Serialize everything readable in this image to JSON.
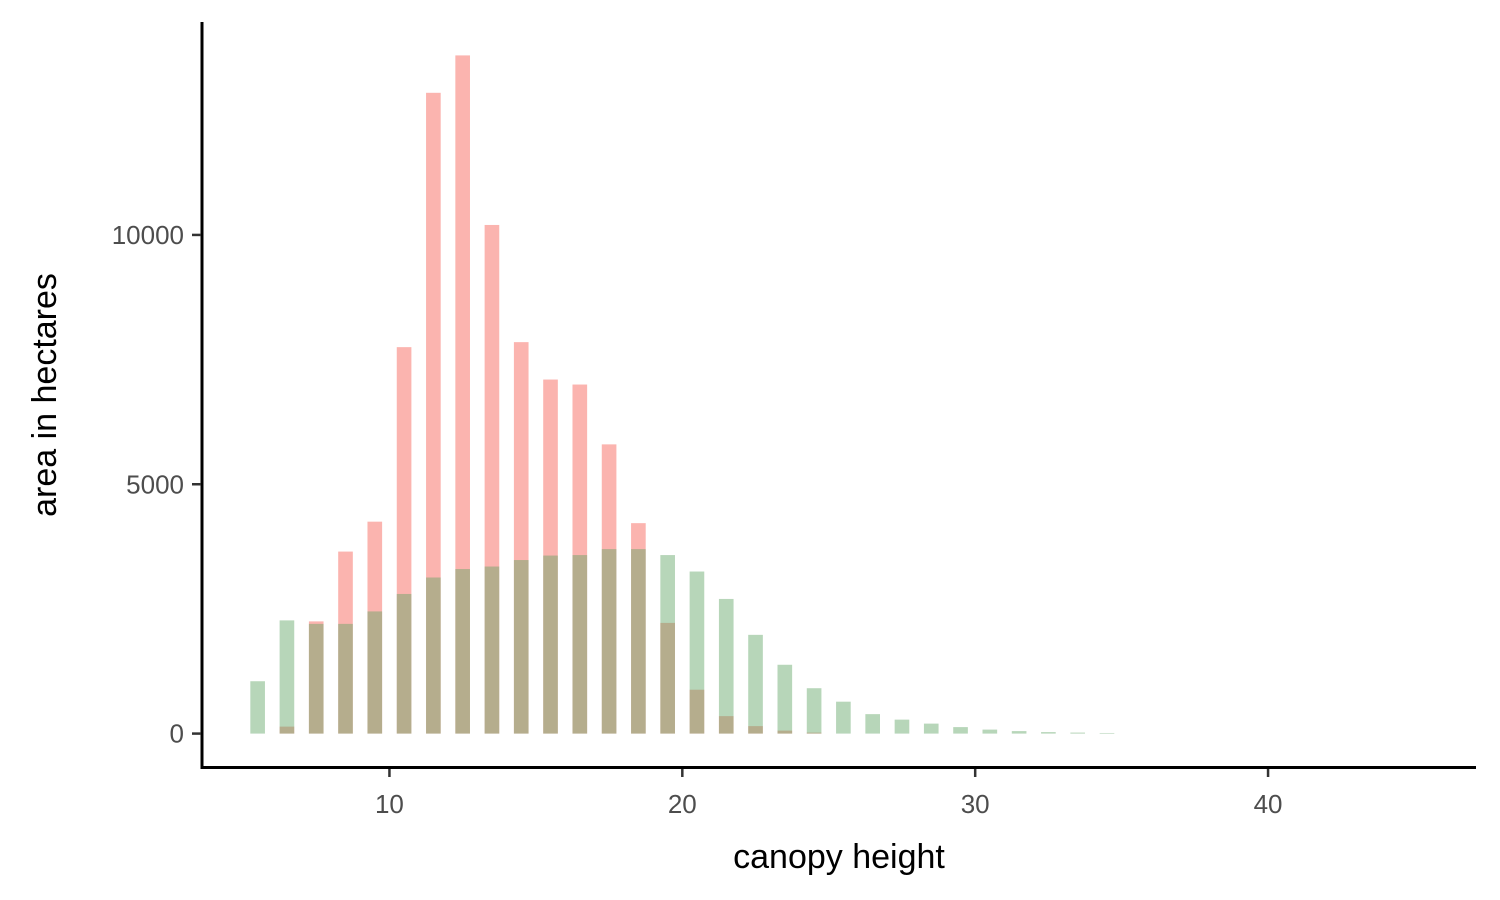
{
  "chart_data": {
    "type": "bar",
    "xlabel": "canopy height",
    "ylabel": "area in hectares",
    "xlim": [
      3.6,
      47.1
    ],
    "ylim": [
      -670,
      14270
    ],
    "x_ticks": [
      10,
      20,
      30,
      40
    ],
    "y_ticks": [
      0,
      5000,
      10000
    ],
    "grid": false,
    "legend": "none",
    "bar_width": 0.5,
    "series": [
      {
        "color": "#f8766d",
        "opacity": 0.55,
        "points": [
          {
            "x": 6.5,
            "y": 140
          },
          {
            "x": 7.5,
            "y": 2250
          },
          {
            "x": 8.5,
            "y": 3650
          },
          {
            "x": 9.5,
            "y": 4250
          },
          {
            "x": 10.5,
            "y": 7750
          },
          {
            "x": 11.5,
            "y": 12850
          },
          {
            "x": 12.5,
            "y": 13600
          },
          {
            "x": 13.5,
            "y": 10200
          },
          {
            "x": 14.5,
            "y": 7850
          },
          {
            "x": 15.5,
            "y": 7100
          },
          {
            "x": 16.5,
            "y": 7000
          },
          {
            "x": 17.5,
            "y": 5800
          },
          {
            "x": 18.5,
            "y": 4220
          },
          {
            "x": 19.5,
            "y": 2220
          },
          {
            "x": 20.5,
            "y": 880
          },
          {
            "x": 21.5,
            "y": 350
          },
          {
            "x": 22.5,
            "y": 150
          },
          {
            "x": 23.5,
            "y": 60
          },
          {
            "x": 24.5,
            "y": 20
          }
        ]
      },
      {
        "color": "#5fa464",
        "opacity": 0.45,
        "points": [
          {
            "x": 5.5,
            "y": 1050
          },
          {
            "x": 6.5,
            "y": 2270
          },
          {
            "x": 7.5,
            "y": 2200
          },
          {
            "x": 8.5,
            "y": 2200
          },
          {
            "x": 9.5,
            "y": 2450
          },
          {
            "x": 10.5,
            "y": 2800
          },
          {
            "x": 11.5,
            "y": 3130
          },
          {
            "x": 12.5,
            "y": 3300
          },
          {
            "x": 13.5,
            "y": 3350
          },
          {
            "x": 14.5,
            "y": 3480
          },
          {
            "x": 15.5,
            "y": 3570
          },
          {
            "x": 16.5,
            "y": 3580
          },
          {
            "x": 17.5,
            "y": 3700
          },
          {
            "x": 18.5,
            "y": 3700
          },
          {
            "x": 19.5,
            "y": 3580
          },
          {
            "x": 20.5,
            "y": 3250
          },
          {
            "x": 21.5,
            "y": 2700
          },
          {
            "x": 22.5,
            "y": 1980
          },
          {
            "x": 23.5,
            "y": 1380
          },
          {
            "x": 24.5,
            "y": 910
          },
          {
            "x": 25.5,
            "y": 640
          },
          {
            "x": 26.5,
            "y": 390
          },
          {
            "x": 27.5,
            "y": 280
          },
          {
            "x": 28.5,
            "y": 200
          },
          {
            "x": 29.5,
            "y": 130
          },
          {
            "x": 30.5,
            "y": 80
          },
          {
            "x": 31.5,
            "y": 50
          },
          {
            "x": 32.5,
            "y": 30
          },
          {
            "x": 33.5,
            "y": 20
          },
          {
            "x": 34.5,
            "y": 12
          }
        ]
      }
    ]
  }
}
